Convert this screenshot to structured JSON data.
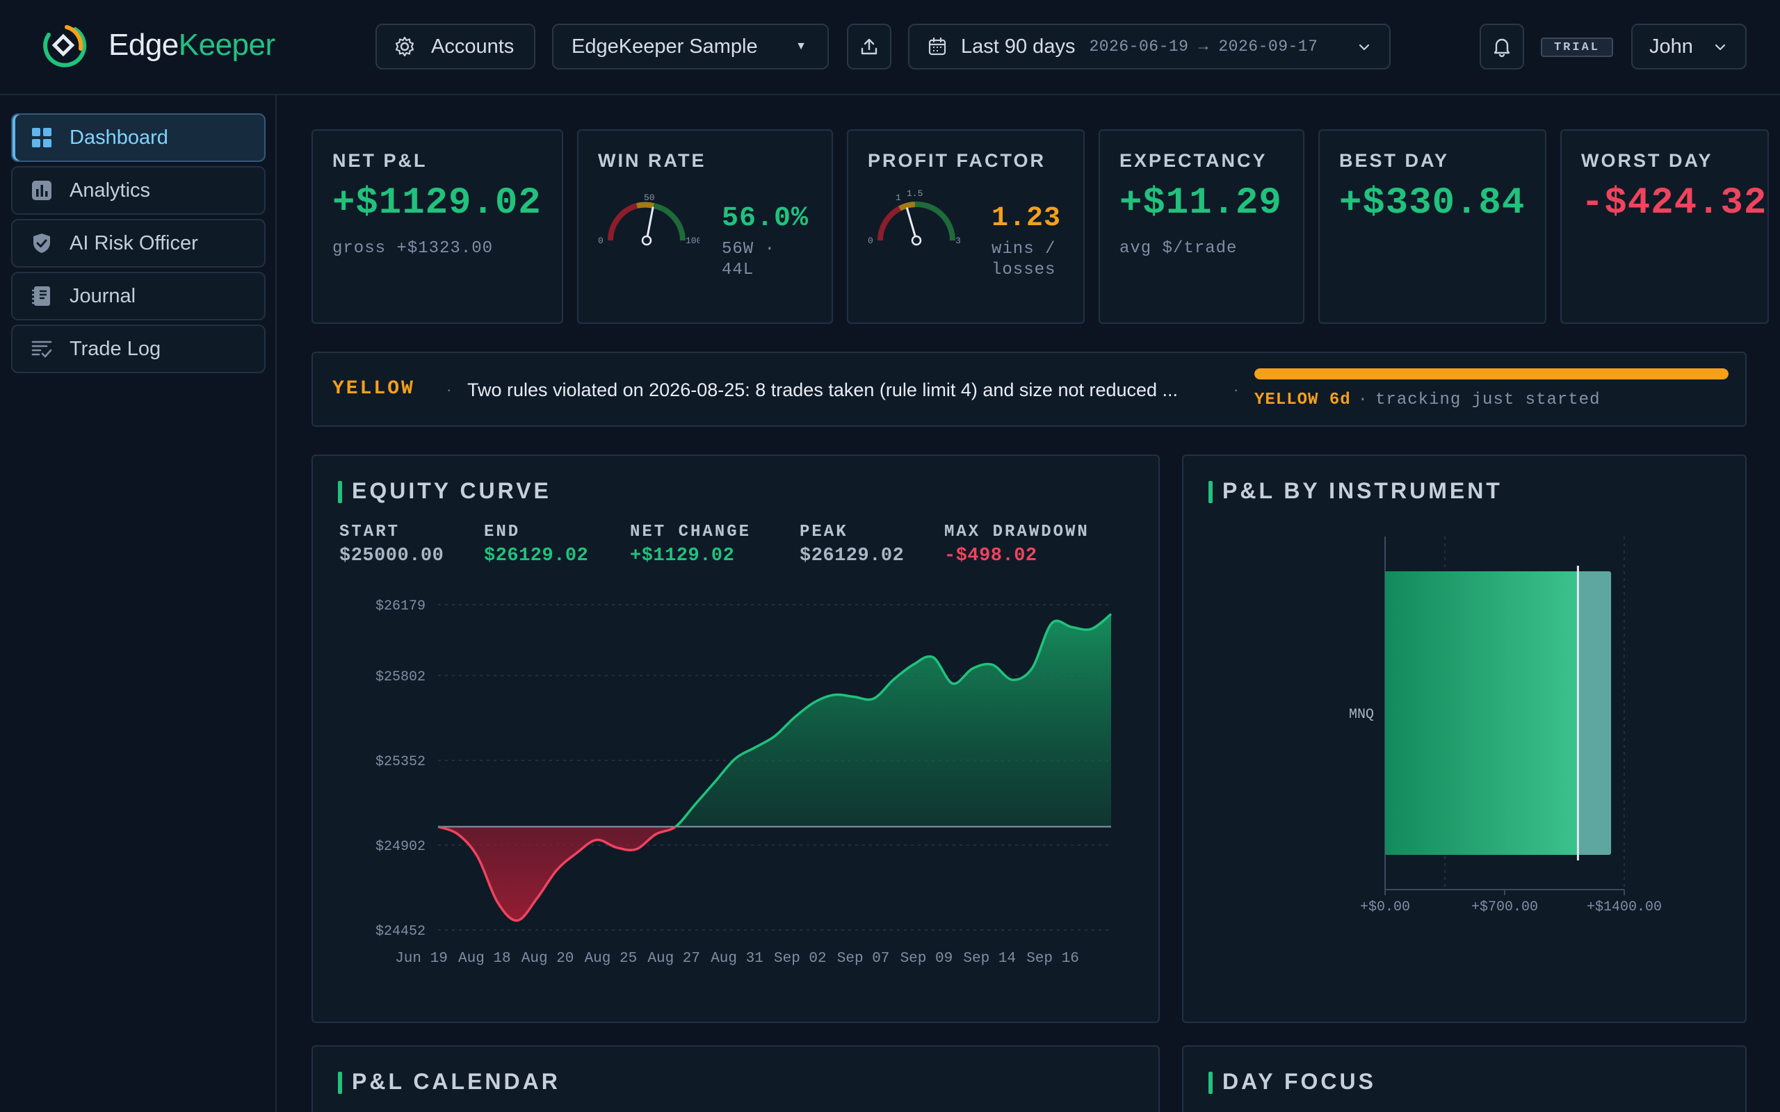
{
  "brand": {
    "name_part1": "Edge",
    "name_part2": "Keeper"
  },
  "topbar": {
    "accounts_label": "Accounts",
    "account_selected": "EdgeKeeper Sample",
    "range_label": "Last 90 days",
    "range_dates": "2026-06-19 → 2026-09-17",
    "trial_badge": "TRIAL",
    "user_name": "John"
  },
  "sidebar": {
    "items": [
      {
        "label": "Dashboard",
        "icon": "grid-icon",
        "active": true
      },
      {
        "label": "Analytics",
        "icon": "bar-chart-icon",
        "active": false
      },
      {
        "label": "AI Risk Officer",
        "icon": "shield-check-icon",
        "active": false
      },
      {
        "label": "Journal",
        "icon": "notebook-icon",
        "active": false
      },
      {
        "label": "Trade Log",
        "icon": "list-check-icon",
        "active": false
      }
    ]
  },
  "kpis": {
    "net_pnl": {
      "label": "NET P&L",
      "value": "+$1129.02",
      "sub": "gross +$1323.00"
    },
    "win_rate": {
      "label": "WIN RATE",
      "value": "56.0%",
      "sub": "56W · 44L",
      "gauge_fraction": 0.56,
      "tick_mid": "50",
      "tick_min": "0",
      "tick_max": "100"
    },
    "profit_factor": {
      "label": "PROFIT FACTOR",
      "value": "1.23",
      "sub": "wins / losses",
      "gauge_value": 1.23,
      "tick_a": "1",
      "tick_b": "1.5",
      "tick_min": "0",
      "tick_max": "3"
    },
    "expectancy": {
      "label": "EXPECTANCY",
      "value": "+$11.29",
      "sub": "avg $/trade"
    },
    "best_day": {
      "label": "BEST DAY",
      "value": "+$330.84"
    },
    "worst_day": {
      "label": "WORST DAY",
      "value": "-$424.32"
    }
  },
  "alert": {
    "level": "YELLOW",
    "message": "Two rules violated on 2026-08-25: 8 trades taken (rule limit 4) and size not reduced ...",
    "status_level": "YELLOW 6d",
    "status_text": "tracking just started",
    "progress_fraction": 1.0,
    "color": "#f4a01b"
  },
  "equity": {
    "title": "EQUITY CURVE",
    "stats": [
      {
        "label": "START",
        "value": "$25000.00",
        "tone": "neutral"
      },
      {
        "label": "END",
        "value": "$26129.02",
        "tone": "pos"
      },
      {
        "label": "NET CHANGE",
        "value": "+$1129.02",
        "tone": "pos"
      },
      {
        "label": "PEAK",
        "value": "$26129.02",
        "tone": "neutral"
      },
      {
        "label": "MAX DRAWDOWN",
        "value": "-$498.02",
        "tone": "neg"
      }
    ]
  },
  "chart_data": [
    {
      "type": "area",
      "title": "EQUITY CURVE",
      "baseline": 25000,
      "ylim": [
        24452,
        26179
      ],
      "y_ticks": [
        "$26179",
        "$25802",
        "$25352",
        "$24902",
        "$24452"
      ],
      "y_tick_values": [
        26179,
        25802,
        25352,
        24902,
        24452
      ],
      "x_ticks": [
        "Jun 19",
        "Aug 18",
        "Aug 20",
        "Aug 25",
        "Aug 27",
        "Aug 31",
        "Sep 02",
        "Sep 07",
        "Sep 09",
        "Sep 14",
        "Sep 16"
      ],
      "values": [
        25000,
        24960,
        24840,
        24600,
        24502,
        24620,
        24770,
        24860,
        24930,
        24890,
        24880,
        24960,
        25000,
        25120,
        25240,
        25360,
        25420,
        25480,
        25580,
        25660,
        25700,
        25690,
        25680,
        25780,
        25860,
        25900,
        25760,
        25840,
        25860,
        25780,
        25840,
        26080,
        26060,
        26050,
        26129.02
      ],
      "grid": true,
      "positive_color": "#20c27c",
      "negative_color": "#f0435d"
    },
    {
      "type": "bar",
      "title": "P&L BY INSTRUMENT",
      "orientation": "horizontal",
      "categories": [
        "MNQ"
      ],
      "series": [
        {
          "values": [
            1323.0
          ]
        },
        {
          "values": [
            1129.02
          ]
        }
      ],
      "xlim": [
        0,
        1400
      ],
      "x_ticks": [
        "+$0.00",
        "+$700.00",
        "+$1400.00"
      ],
      "x_tick_values": [
        0,
        700,
        1400
      ],
      "grid": true
    }
  ],
  "instrument": {
    "title": "P&L BY INSTRUMENT"
  },
  "calendar": {
    "title": "P&L CALENDAR"
  },
  "day_focus": {
    "title": "DAY FOCUS"
  }
}
